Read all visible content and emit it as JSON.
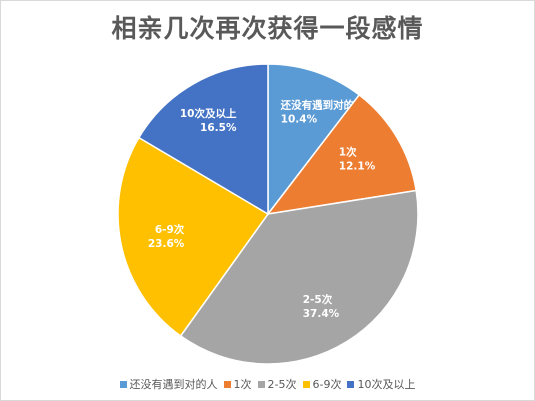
{
  "chart_data": {
    "type": "pie",
    "title": "相亲几次再次获得一段感情",
    "categories": [
      "还没有遇到对的人",
      "1次",
      "2-5次",
      "6-9次",
      "10次及以上"
    ],
    "values": [
      10.4,
      12.1,
      37.4,
      23.6,
      16.5
    ],
    "value_labels": [
      "10.4%",
      "12.1%",
      "37.4%",
      "23.6%",
      "16.5%"
    ],
    "colors": [
      "#5b9bd5",
      "#ed7d31",
      "#a5a5a5",
      "#ffc000",
      "#4472c4"
    ],
    "legend_position": "bottom",
    "start_angle": "top, clockwise"
  }
}
